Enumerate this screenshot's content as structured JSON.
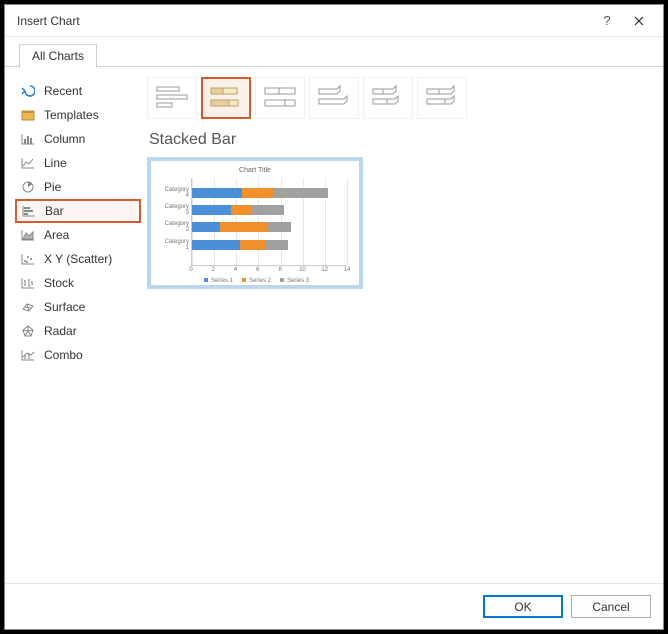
{
  "dialog": {
    "title": "Insert Chart",
    "tabs": {
      "all_charts": "All Charts"
    },
    "buttons": {
      "ok": "OK",
      "cancel": "Cancel"
    }
  },
  "sidebar": {
    "items": [
      {
        "key": "recent",
        "label": "Recent"
      },
      {
        "key": "templates",
        "label": "Templates"
      },
      {
        "key": "column",
        "label": "Column"
      },
      {
        "key": "line",
        "label": "Line"
      },
      {
        "key": "pie",
        "label": "Pie"
      },
      {
        "key": "bar",
        "label": "Bar",
        "selected": true
      },
      {
        "key": "area",
        "label": "Area"
      },
      {
        "key": "scatter",
        "label": "X Y (Scatter)"
      },
      {
        "key": "stock",
        "label": "Stock"
      },
      {
        "key": "surface",
        "label": "Surface"
      },
      {
        "key": "radar",
        "label": "Radar"
      },
      {
        "key": "combo",
        "label": "Combo"
      }
    ]
  },
  "subtypes": {
    "selected_index": 1,
    "items": [
      {
        "name": "Clustered Bar"
      },
      {
        "name": "Stacked Bar"
      },
      {
        "name": "100% Stacked Bar"
      },
      {
        "name": "3-D Clustered Bar"
      },
      {
        "name": "3-D Stacked Bar"
      },
      {
        "name": "3-D 100% Stacked Bar"
      }
    ]
  },
  "selected_chart_label": "Stacked Bar",
  "preview": {
    "type": "stacked-bar-horizontal",
    "title": "Chart Title",
    "categories": [
      "Category 4",
      "Category 3",
      "Category 2",
      "Category 1"
    ],
    "series_names": [
      "Series 1",
      "Series 2",
      "Series 3"
    ],
    "series_colors": [
      "#4a90d9",
      "#f0902a",
      "#a0a0a0"
    ],
    "values": [
      [
        4.5,
        2.8,
        5.0
      ],
      [
        3.5,
        1.8,
        3.0
      ],
      [
        2.5,
        4.4,
        2.0
      ],
      [
        4.3,
        2.4,
        2.0
      ]
    ],
    "xmax": 14,
    "xtick_step": 2,
    "xticks": [
      0,
      2,
      4,
      6,
      8,
      10,
      12,
      14
    ],
    "background_color": "#ffffff",
    "grid_color": "#e8e8e8",
    "border_color": "#bcd6ec",
    "title_fontsize": 7,
    "label_fontsize": 6
  },
  "colors": {
    "accent_orange": "#d65a2b",
    "accent_blue": "#0078d7"
  }
}
